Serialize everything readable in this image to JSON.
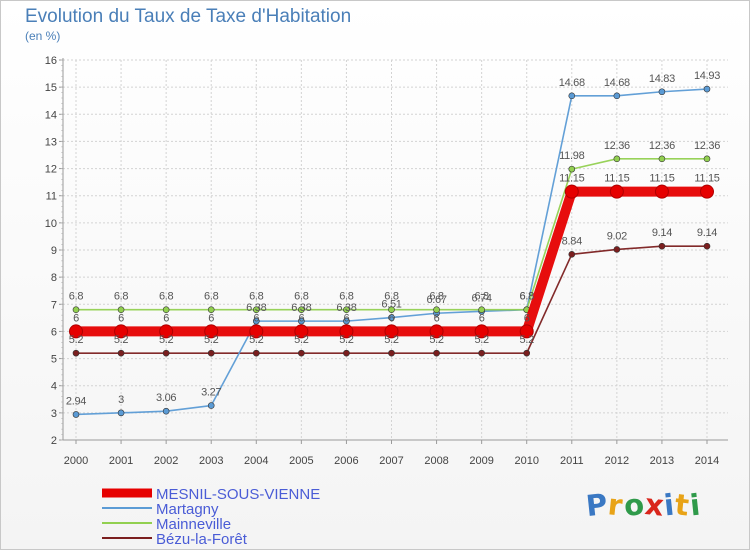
{
  "chart_data": {
    "type": "line",
    "title": "Evolution du Taux de Taxe d'Habitation",
    "ylabel": "(en %)",
    "xlabel": "",
    "ylim": [
      2,
      16
    ],
    "grid": true,
    "x": [
      "2000",
      "2001",
      "2002",
      "2003",
      "2004",
      "2005",
      "2006",
      "2007",
      "2008",
      "2009",
      "2010",
      "2011",
      "2012",
      "2013",
      "2014"
    ],
    "yticks": [
      "2",
      "3",
      "4",
      "5",
      "6",
      "7",
      "8",
      "9",
      "10",
      "11",
      "12",
      "13",
      "14",
      "15",
      "16"
    ],
    "series": [
      {
        "name": "MESNIL-SOUS-VIENNE",
        "color": "#e60000",
        "values": [
          6,
          6,
          6,
          6,
          6,
          6,
          6,
          6,
          6,
          6,
          6,
          11.15,
          11.15,
          11.15,
          11.15
        ],
        "labels": [
          "6",
          "6",
          "6",
          "6",
          "6",
          "6",
          "6",
          "6",
          "6",
          "6",
          "6",
          "11.15",
          "11.15",
          "11.15",
          "11.15"
        ]
      },
      {
        "name": "Martagny",
        "color": "#5b9bd5",
        "values": [
          2.94,
          3,
          3.06,
          3.27,
          6.38,
          6.38,
          6.38,
          6.51,
          6.67,
          6.74,
          6.8,
          14.68,
          14.68,
          14.83,
          14.93
        ],
        "labels": [
          "2.94",
          "3",
          "3.06",
          "3.27",
          "6.38",
          "6.38",
          "6.38",
          "6.51",
          "6.67",
          "6.74",
          "6.8",
          "14.68",
          "14.68",
          "14.83",
          "14.93"
        ]
      },
      {
        "name": "Mainneville",
        "color": "#92d050",
        "values": [
          6.8,
          6.8,
          6.8,
          6.8,
          6.8,
          6.8,
          6.8,
          6.8,
          6.8,
          6.8,
          6.8,
          11.98,
          12.36,
          12.36,
          12.36
        ],
        "labels": [
          "6.8",
          "6.8",
          "6.8",
          "6.8",
          "6.8",
          "6.8",
          "6.8",
          "6.8",
          "6.8",
          "6.8",
          "6.8",
          "11.98",
          "12.36",
          "12.36",
          "12.36"
        ]
      },
      {
        "name": "Bézu-la-Forêt",
        "color": "#7b1f1f",
        "values": [
          5.2,
          5.2,
          5.2,
          5.2,
          5.2,
          5.2,
          5.2,
          5.2,
          5.2,
          5.2,
          5.2,
          8.84,
          9.02,
          9.14,
          9.14
        ],
        "labels": [
          "5.2",
          "5.2",
          "5.2",
          "5.2",
          "5.2",
          "5.2",
          "5.2",
          "5.2",
          "5.2",
          "5.2",
          "5.2",
          "8.84",
          "9.02",
          "9.14",
          "9.14"
        ]
      }
    ]
  },
  "brand": {
    "letters": [
      "P",
      "r",
      "o",
      "x",
      "i",
      "t",
      "i"
    ],
    "colors": [
      "#3a78c3",
      "#e8a317",
      "#2f9a4a",
      "#d9261c",
      "#3a78c3",
      "#e8a317",
      "#2f9a4a"
    ]
  }
}
